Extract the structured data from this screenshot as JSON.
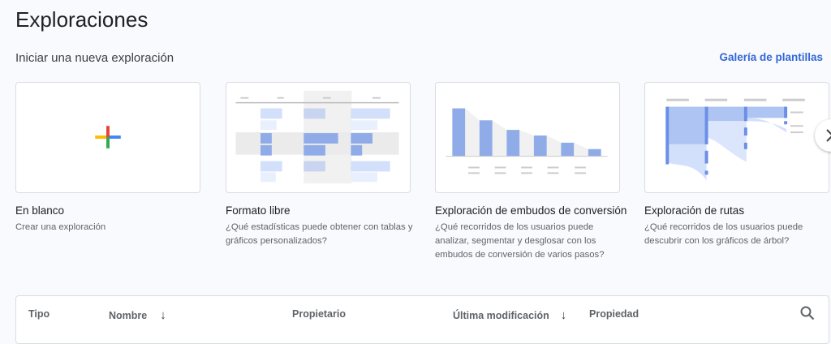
{
  "page": {
    "title": "Exploraciones",
    "subtitle": "Iniciar una nueva exploración",
    "gallery_link": "Galería de plantillas"
  },
  "templates": [
    {
      "title": "En blanco",
      "description": "Crear una exploración",
      "icon": "plus-icon"
    },
    {
      "title": "Formato libre",
      "description": "¿Qué estadísticas puede obtener con tablas y gráficos personalizados?",
      "icon": "table-thumbnail"
    },
    {
      "title": "Exploración de embudos de conversión",
      "description": "¿Qué recorridos de los usuarios puede analizar, segmentar y desglosar con los embudos de conversión de varios pasos?",
      "icon": "funnel-thumbnail"
    },
    {
      "title": "Exploración de rutas",
      "description": "¿Qué recorridos de los usuarios puede descubrir con los gráficos de árbol?",
      "icon": "path-thumbnail"
    }
  ],
  "table": {
    "columns": [
      "Tipo",
      "Nombre",
      "Propietario",
      "Última modificación",
      "Propiedad"
    ]
  },
  "colors": {
    "accent": "#3367d6",
    "bar": "#8fabe8",
    "bar_light": "#d2e0fb"
  }
}
